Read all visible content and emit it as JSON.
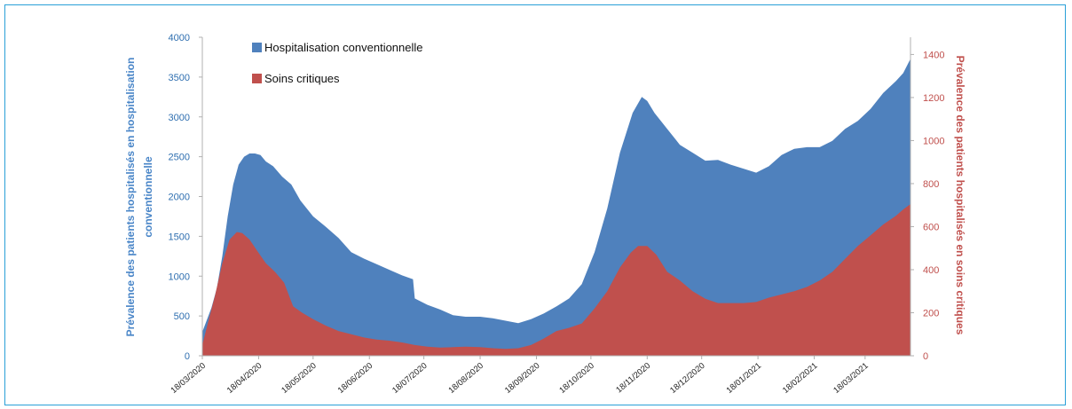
{
  "chart_data": {
    "type": "area",
    "title": "",
    "ylabel_left_lines": [
      "Prévalence des patients hospitalisés en hospitalisation",
      "conventionnelle"
    ],
    "ylabel_right": "Prévalence des patients hospitalisés en soins critiques",
    "ylim_left": [
      0,
      4000
    ],
    "ylim_right": [
      0,
      1480
    ],
    "yticks_left": [
      "0",
      "500",
      "1000",
      "1500",
      "2000",
      "2500",
      "3000",
      "3500",
      "4000"
    ],
    "yticks_right": [
      "0",
      "200",
      "400",
      "600",
      "800",
      "1000",
      "1200",
      "1400"
    ],
    "xticks": [
      "18/03/2020",
      "18/04/2020",
      "18/05/2020",
      "18/06/2020",
      "18/07/2020",
      "18/08/2020",
      "18/09/2020",
      "18/10/2020",
      "18/11/2020",
      "18/12/2020",
      "18/01/2021",
      "18/02/2021",
      "18/03/2021"
    ],
    "x_start": "18/03/2020",
    "x_end": "12/04/2021",
    "legend_position": "top-left",
    "grid": false,
    "series": [
      {
        "name": "Hospitalisation conventionnelle",
        "axis": "left",
        "color": "#4f81bd",
        "points": [
          [
            "18/03/2020",
            300
          ],
          [
            "20/03/2020",
            420
          ],
          [
            "23/03/2020",
            600
          ],
          [
            "26/03/2020",
            850
          ],
          [
            "29/03/2020",
            1250
          ],
          [
            "01/04/2020",
            1750
          ],
          [
            "04/04/2020",
            2150
          ],
          [
            "07/04/2020",
            2400
          ],
          [
            "10/04/2020",
            2500
          ],
          [
            "13/04/2020",
            2540
          ],
          [
            "16/04/2020",
            2540
          ],
          [
            "19/04/2020",
            2520
          ],
          [
            "22/04/2020",
            2440
          ],
          [
            "26/04/2020",
            2380
          ],
          [
            "01/05/2020",
            2250
          ],
          [
            "06/05/2020",
            2150
          ],
          [
            "11/05/2020",
            1950
          ],
          [
            "18/05/2020",
            1750
          ],
          [
            "25/05/2020",
            1620
          ],
          [
            "01/06/2020",
            1480
          ],
          [
            "08/06/2020",
            1300
          ],
          [
            "15/06/2020",
            1220
          ],
          [
            "22/06/2020",
            1150
          ],
          [
            "29/06/2020",
            1080
          ],
          [
            "06/07/2020",
            1010
          ],
          [
            "12/07/2020",
            960
          ],
          [
            "13/07/2020",
            720
          ],
          [
            "20/07/2020",
            640
          ],
          [
            "27/07/2020",
            580
          ],
          [
            "03/08/2020",
            510
          ],
          [
            "10/08/2020",
            490
          ],
          [
            "18/08/2020",
            490
          ],
          [
            "25/08/2020",
            470
          ],
          [
            "01/09/2020",
            440
          ],
          [
            "08/09/2020",
            410
          ],
          [
            "15/09/2020",
            460
          ],
          [
            "22/09/2020",
            530
          ],
          [
            "29/09/2020",
            620
          ],
          [
            "06/10/2020",
            720
          ],
          [
            "13/10/2020",
            900
          ],
          [
            "20/10/2020",
            1300
          ],
          [
            "27/10/2020",
            1850
          ],
          [
            "03/11/2020",
            2550
          ],
          [
            "10/11/2020",
            3050
          ],
          [
            "15/11/2020",
            3250
          ],
          [
            "18/11/2020",
            3200
          ],
          [
            "22/11/2020",
            3050
          ],
          [
            "29/11/2020",
            2850
          ],
          [
            "06/12/2020",
            2650
          ],
          [
            "13/12/2020",
            2550
          ],
          [
            "20/12/2020",
            2450
          ],
          [
            "27/12/2020",
            2460
          ],
          [
            "03/01/2021",
            2400
          ],
          [
            "10/01/2021",
            2350
          ],
          [
            "17/01/2021",
            2300
          ],
          [
            "24/01/2021",
            2380
          ],
          [
            "31/01/2021",
            2520
          ],
          [
            "07/02/2021",
            2600
          ],
          [
            "14/02/2021",
            2620
          ],
          [
            "21/02/2021",
            2620
          ],
          [
            "28/02/2021",
            2700
          ],
          [
            "07/03/2021",
            2850
          ],
          [
            "14/03/2021",
            2950
          ],
          [
            "21/03/2021",
            3100
          ],
          [
            "28/03/2021",
            3300
          ],
          [
            "04/04/2021",
            3450
          ],
          [
            "08/04/2021",
            3550
          ],
          [
            "12/04/2021",
            3730
          ]
        ]
      },
      {
        "name": "Soins critiques",
        "axis": "right",
        "color": "#c0504d",
        "points": [
          [
            "18/03/2020",
            50
          ],
          [
            "21/03/2020",
            150
          ],
          [
            "25/03/2020",
            280
          ],
          [
            "29/03/2020",
            430
          ],
          [
            "02/04/2020",
            540
          ],
          [
            "06/04/2020",
            575
          ],
          [
            "09/04/2020",
            570
          ],
          [
            "13/04/2020",
            540
          ],
          [
            "17/04/2020",
            490
          ],
          [
            "22/04/2020",
            430
          ],
          [
            "27/04/2020",
            390
          ],
          [
            "02/05/2020",
            340
          ],
          [
            "07/05/2020",
            230
          ],
          [
            "12/05/2020",
            200
          ],
          [
            "18/05/2020",
            170
          ],
          [
            "25/05/2020",
            140
          ],
          [
            "01/06/2020",
            115
          ],
          [
            "08/06/2020",
            100
          ],
          [
            "15/06/2020",
            85
          ],
          [
            "22/06/2020",
            75
          ],
          [
            "29/06/2020",
            70
          ],
          [
            "06/07/2020",
            62
          ],
          [
            "13/07/2020",
            50
          ],
          [
            "20/07/2020",
            42
          ],
          [
            "27/07/2020",
            38
          ],
          [
            "03/08/2020",
            40
          ],
          [
            "10/08/2020",
            42
          ],
          [
            "18/08/2020",
            40
          ],
          [
            "25/08/2020",
            35
          ],
          [
            "01/09/2020",
            32
          ],
          [
            "08/09/2020",
            35
          ],
          [
            "15/09/2020",
            50
          ],
          [
            "22/09/2020",
            80
          ],
          [
            "29/09/2020",
            115
          ],
          [
            "06/10/2020",
            130
          ],
          [
            "13/10/2020",
            150
          ],
          [
            "20/10/2020",
            220
          ],
          [
            "27/10/2020",
            300
          ],
          [
            "03/11/2020",
            410
          ],
          [
            "09/11/2020",
            480
          ],
          [
            "13/11/2020",
            510
          ],
          [
            "18/11/2020",
            510
          ],
          [
            "23/11/2020",
            470
          ],
          [
            "29/11/2020",
            390
          ],
          [
            "06/12/2020",
            350
          ],
          [
            "13/12/2020",
            300
          ],
          [
            "20/12/2020",
            265
          ],
          [
            "27/12/2020",
            245
          ],
          [
            "03/01/2021",
            245
          ],
          [
            "10/01/2021",
            245
          ],
          [
            "17/01/2021",
            250
          ],
          [
            "24/01/2021",
            270
          ],
          [
            "31/01/2021",
            285
          ],
          [
            "07/02/2021",
            300
          ],
          [
            "14/02/2021",
            320
          ],
          [
            "21/02/2021",
            350
          ],
          [
            "28/02/2021",
            390
          ],
          [
            "07/03/2021",
            450
          ],
          [
            "14/03/2021",
            510
          ],
          [
            "21/03/2021",
            560
          ],
          [
            "28/03/2021",
            610
          ],
          [
            "04/04/2021",
            650
          ],
          [
            "08/04/2021",
            680
          ],
          [
            "12/04/2021",
            705
          ]
        ]
      }
    ]
  }
}
